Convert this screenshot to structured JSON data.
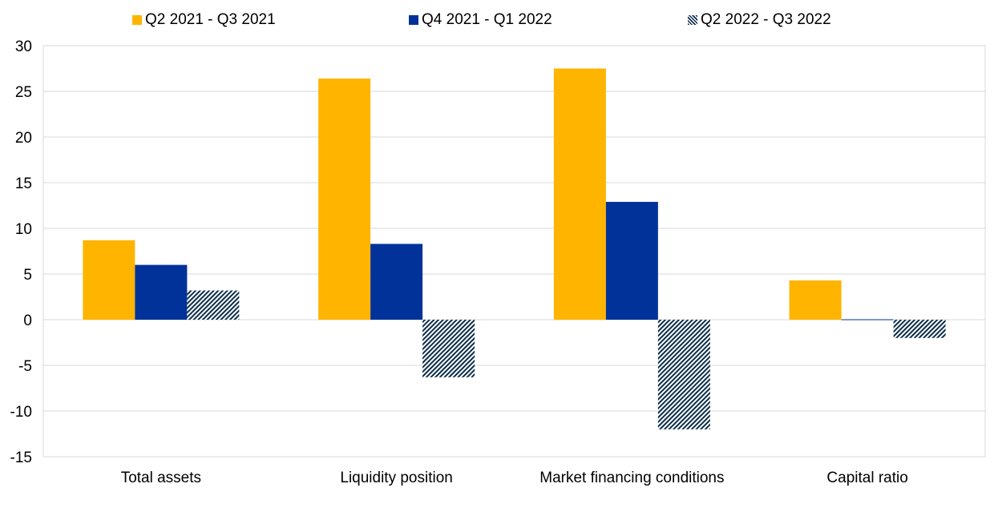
{
  "chart_data": {
    "type": "bar",
    "categories": [
      "Total assets",
      "Liquidity position",
      "Market financing conditions",
      "Capital ratio"
    ],
    "series": [
      {
        "name": "Q2 2021 - Q3 2021",
        "color": "#FFB400",
        "pattern": "solid",
        "values": [
          8.7,
          26.4,
          27.5,
          4.3
        ]
      },
      {
        "name": "Q4 2021 - Q1 2022",
        "color": "#003299",
        "pattern": "solid",
        "values": [
          6.0,
          8.3,
          12.9,
          0.0
        ]
      },
      {
        "name": "Q2 2022 - Q3 2022",
        "color": "#0C2E4B",
        "pattern": "diagonal-hatch",
        "values": [
          3.2,
          -6.3,
          -12.0,
          -2.0
        ]
      }
    ],
    "yticks": [
      "30",
      "25",
      "20",
      "15",
      "10",
      "5",
      "0",
      "-5",
      "-10",
      "-15"
    ],
    "ylim": [
      -15,
      30
    ],
    "grid": true,
    "legend_position": "top"
  }
}
